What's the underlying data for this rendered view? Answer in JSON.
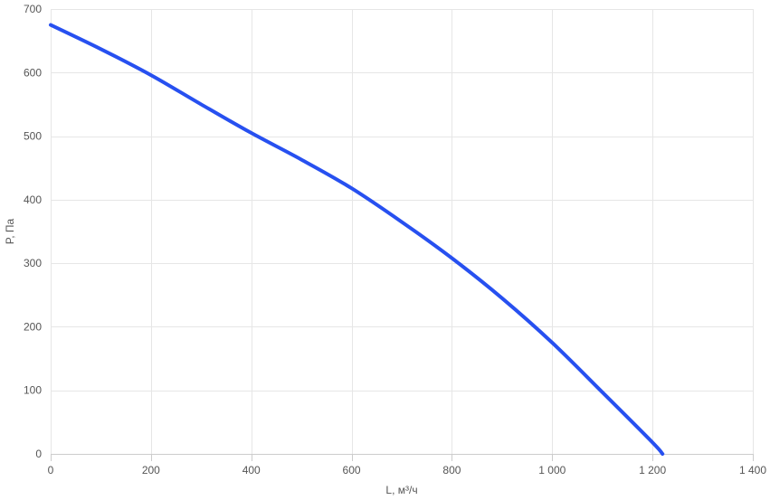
{
  "chart_data": {
    "type": "line",
    "title": "",
    "xlabel": "L, м³/ч",
    "ylabel": "P, Па",
    "xlim": [
      0,
      1400
    ],
    "ylim": [
      0,
      700
    ],
    "x_ticks": [
      0,
      200,
      400,
      600,
      800,
      1000,
      1200,
      1400
    ],
    "x_tick_labels": [
      "0",
      "200",
      "400",
      "600",
      "800",
      "1 000",
      "1 200",
      "1 400"
    ],
    "y_ticks": [
      0,
      100,
      200,
      300,
      400,
      500,
      600,
      700
    ],
    "y_tick_labels": [
      "0",
      "100",
      "200",
      "300",
      "400",
      "500",
      "600",
      "700"
    ],
    "grid": true,
    "legend": "none",
    "series": [
      {
        "color": "#2750f0",
        "x": [
          0,
          100,
          200,
          300,
          400,
          500,
          600,
          700,
          800,
          900,
          1000,
          1100,
          1200,
          1220
        ],
        "y": [
          675,
          637,
          596,
          550,
          505,
          463,
          418,
          365,
          308,
          245,
          175,
          97,
          18,
          0
        ]
      }
    ]
  }
}
